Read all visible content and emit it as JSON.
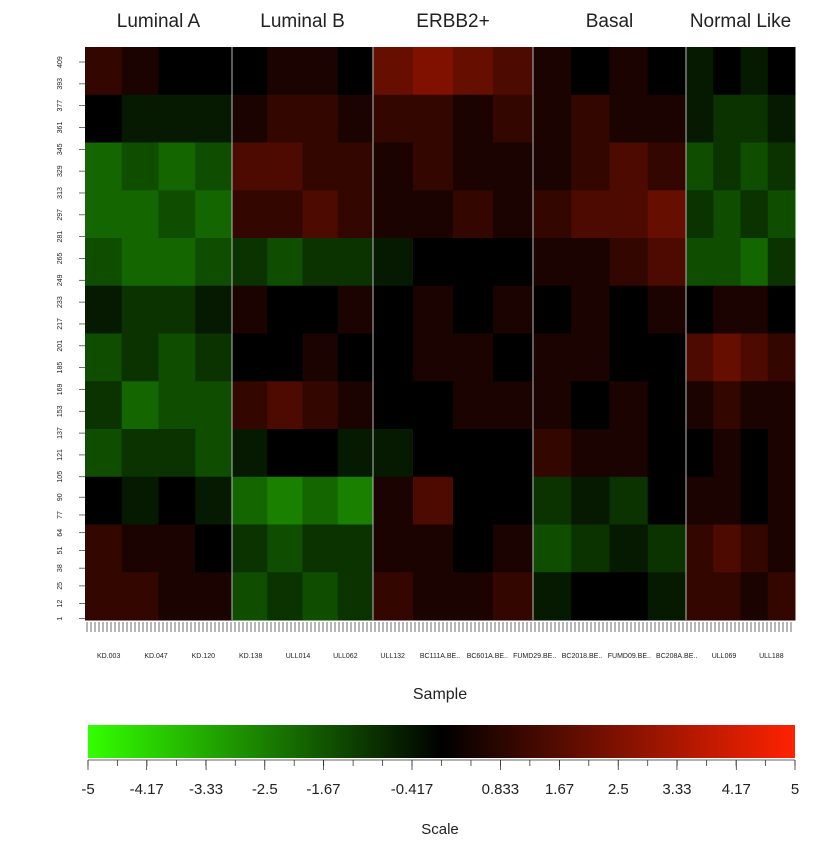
{
  "chart_data": {
    "type": "heatmap",
    "groups": [
      {
        "name": "Luminal A",
        "values": [
          [
            1,
            0.5,
            0,
            0
          ],
          [
            0,
            -0.5,
            -0.5,
            -0.5
          ],
          [
            -2,
            -1.5,
            -2,
            -1.5
          ],
          [
            -2,
            -2,
            -1.5,
            -2
          ],
          [
            -1.5,
            -2,
            -2,
            -1.5
          ],
          [
            -0.5,
            -1,
            -1,
            -0.5
          ],
          [
            -1.5,
            -1,
            -1.5,
            -1
          ],
          [
            -1,
            -2,
            -1.5,
            -1.5
          ],
          [
            -1.5,
            -1,
            -1,
            -1.5
          ],
          [
            0,
            -0.5,
            0,
            -0.5
          ],
          [
            1,
            0.5,
            0.5,
            0
          ],
          [
            1,
            1,
            0.5,
            0.5
          ]
        ]
      },
      {
        "name": "Luminal B",
        "values": [
          [
            0,
            0.5,
            0.5,
            0
          ],
          [
            0.5,
            1,
            1,
            0.5
          ],
          [
            1.5,
            1.5,
            1,
            1
          ],
          [
            1,
            1,
            1.5,
            1
          ],
          [
            -1,
            -1.5,
            -1,
            -1
          ],
          [
            0.5,
            0,
            0,
            0.5
          ],
          [
            0,
            0,
            0.5,
            0
          ],
          [
            1,
            1.5,
            1,
            0.5
          ],
          [
            -0.5,
            0,
            0,
            -0.5
          ],
          [
            -2,
            -2.5,
            -2,
            -2.5
          ],
          [
            -1,
            -1.5,
            -1,
            -1
          ],
          [
            -1.5,
            -1,
            -1.5,
            -1
          ]
        ]
      },
      {
        "name": "ERBB2+",
        "values": [
          [
            2,
            2.5,
            2,
            1.5
          ],
          [
            1,
            1,
            0.5,
            1
          ],
          [
            0.5,
            1,
            0.5,
            0.5
          ],
          [
            0.5,
            0.5,
            1,
            0.5
          ],
          [
            -0.5,
            0,
            0,
            0
          ],
          [
            0,
            0.5,
            0,
            0.5
          ],
          [
            0,
            0.5,
            0.5,
            0
          ],
          [
            0,
            0,
            0.5,
            0.5
          ],
          [
            -0.5,
            0,
            0,
            0
          ],
          [
            0.5,
            1.5,
            0,
            0
          ],
          [
            0.5,
            0.5,
            0,
            0.5
          ],
          [
            1,
            0.5,
            0.5,
            1
          ]
        ]
      },
      {
        "name": "Basal",
        "values": [
          [
            0.5,
            0,
            0.5,
            0
          ],
          [
            0.5,
            1,
            0.5,
            0.5
          ],
          [
            0.5,
            1,
            1.5,
            1
          ],
          [
            1,
            1.5,
            1.5,
            2
          ],
          [
            0.5,
            0.5,
            1,
            1.5
          ],
          [
            0,
            0.5,
            0,
            0.5
          ],
          [
            0.5,
            0.5,
            0,
            0
          ],
          [
            0.5,
            0,
            0.5,
            0
          ],
          [
            1,
            0.5,
            0.5,
            0
          ],
          [
            -1,
            -0.5,
            -1,
            0
          ],
          [
            -1.5,
            -1,
            -0.5,
            -1
          ],
          [
            -0.5,
            0,
            0,
            -0.5
          ]
        ]
      },
      {
        "name": "Normal Like",
        "values": [
          [
            -0.5,
            0,
            -0.5,
            0
          ],
          [
            -0.5,
            -1,
            -1,
            -0.5
          ],
          [
            -1.5,
            -1,
            -1.5,
            -1
          ],
          [
            -1,
            -1.5,
            -1,
            -1.5
          ],
          [
            -1.5,
            -1.5,
            -2,
            -1
          ],
          [
            0,
            0.5,
            0.5,
            0
          ],
          [
            1.5,
            2,
            1.5,
            1
          ],
          [
            0.5,
            1,
            0.5,
            0.5
          ],
          [
            0,
            0.5,
            0,
            0.5
          ],
          [
            0.5,
            0.5,
            0,
            0.5
          ],
          [
            1,
            1.5,
            1,
            0.5
          ],
          [
            1,
            1,
            0.5,
            1
          ]
        ]
      }
    ],
    "xticklabels": [
      "KD.003",
      "KD.047",
      "KD.120",
      "KD.138",
      "ULL014",
      "ULL062",
      "ULL132",
      "BC111A.BE..",
      "BC601A.BE..",
      "FUMD29.BE..",
      "BC2018.BE..",
      "FUMD09.BE..",
      "BC208A.BE..",
      "ULL069",
      "ULL188"
    ],
    "ylim": [
      0,
      420
    ],
    "yticks": [
      1,
      12,
      25,
      38,
      51,
      64,
      77,
      90,
      105,
      121,
      137,
      153,
      169,
      185,
      201,
      217,
      233,
      249,
      265,
      281,
      297,
      313,
      329,
      345,
      361,
      377,
      393,
      409
    ],
    "xlabel": "Sample",
    "colorbar_label": "Scale",
    "zlim": [
      -5,
      5
    ],
    "zticks": [
      -5,
      -4.17,
      -3.33,
      -2.5,
      -1.67,
      -0.417,
      0.833,
      1.67,
      2.5,
      3.33,
      4.17,
      5
    ],
    "colors": [
      "#33ff00",
      "#000000",
      "#ff2200"
    ]
  }
}
